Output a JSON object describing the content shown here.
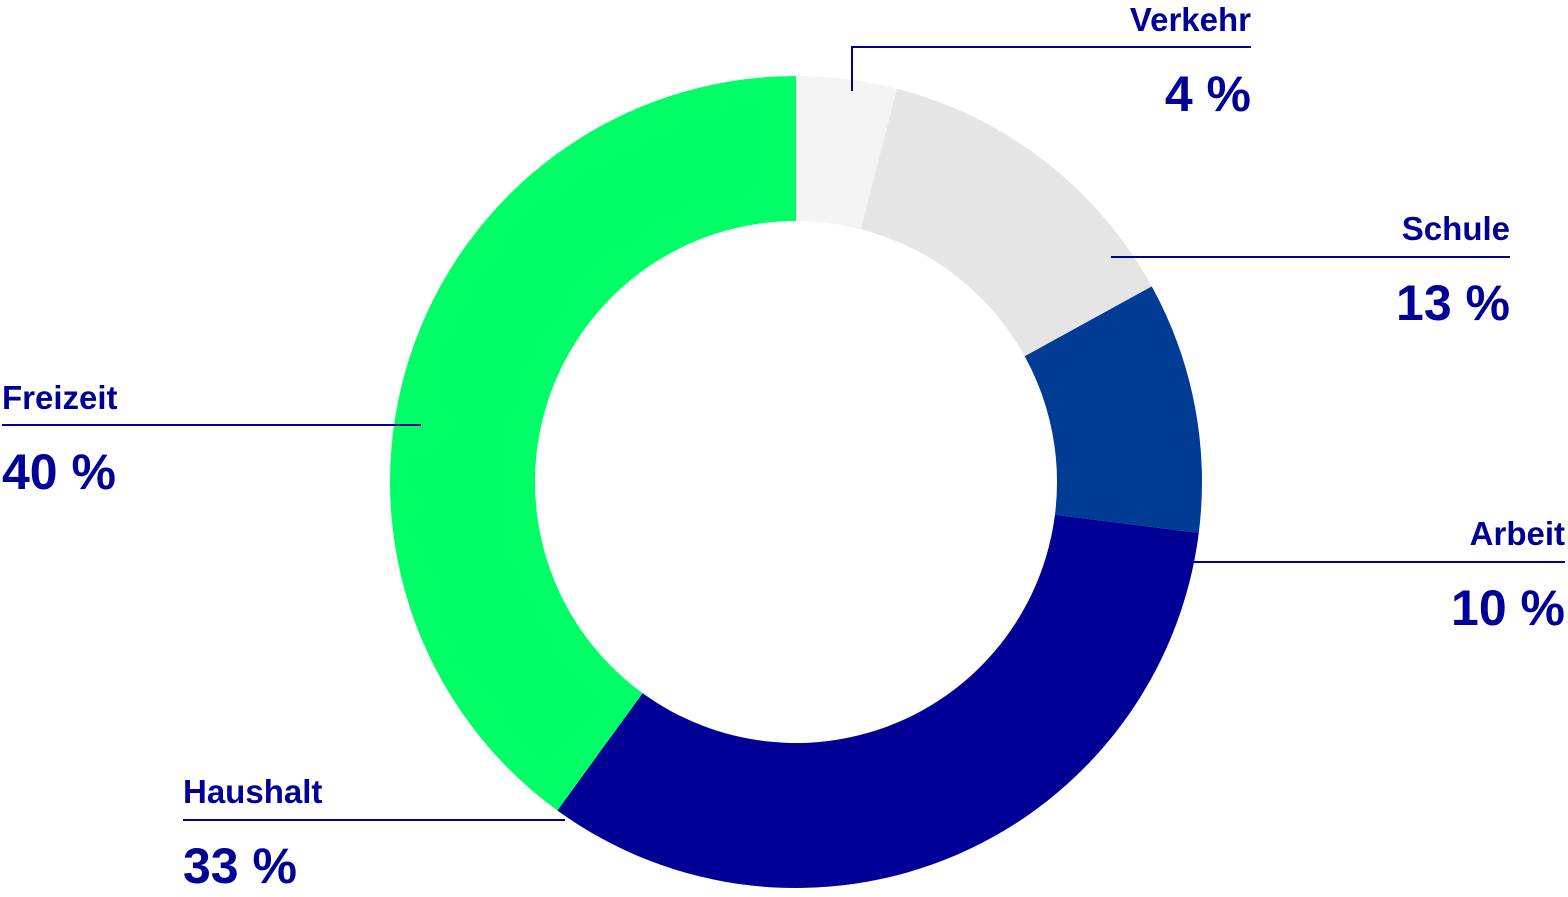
{
  "chart_data": {
    "type": "pie",
    "title": "",
    "slices": [
      {
        "label": "Verkehr",
        "value": 4,
        "value_label": "4 %",
        "color": "#f4f4f4"
      },
      {
        "label": "Schule",
        "value": 13,
        "value_label": "13 %",
        "color": "#e5e5e5"
      },
      {
        "label": "Arbeit",
        "value": 10,
        "value_label": "10 %",
        "color": "#003c94"
      },
      {
        "label": "Haushalt",
        "value": 33,
        "value_label": "33 %",
        "color": "#010096"
      },
      {
        "label": "Freizeit",
        "value": 40,
        "value_label": "40 %",
        "color": "#00ff66"
      }
    ],
    "legend": "none",
    "label_color": "#010096"
  }
}
